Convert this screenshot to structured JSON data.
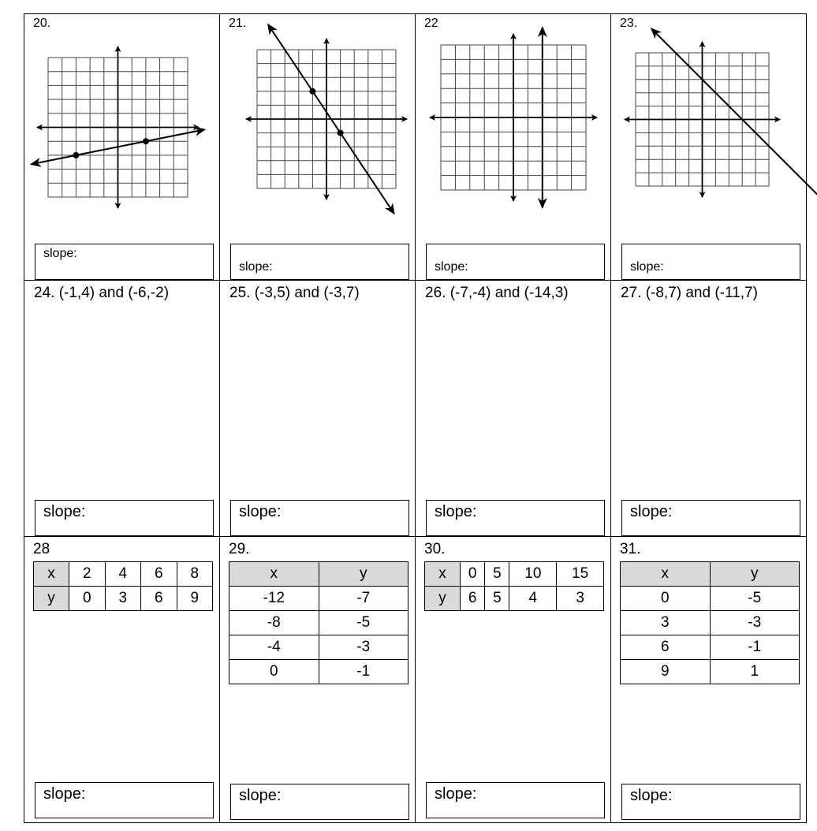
{
  "graphs": [
    {
      "label": "20.",
      "slope_label": "slope:",
      "grid": 10,
      "points": [
        [
          -3,
          -2
        ],
        [
          2,
          -1
        ]
      ],
      "line": {
        "type": "through",
        "p1": [
          -3,
          -2
        ],
        "p2": [
          2,
          -1
        ]
      }
    },
    {
      "label": "21.",
      "slope_label": "slope:",
      "grid": 10,
      "points": [
        [
          -1,
          2
        ],
        [
          1,
          -1
        ]
      ],
      "line": {
        "type": "through",
        "p1": [
          -1,
          2
        ],
        "p2": [
          1,
          -1
        ]
      }
    },
    {
      "label": "22",
      "slope_label": "slope:",
      "grid": 10,
      "points": [],
      "line": {
        "type": "vertical",
        "x": 2
      }
    },
    {
      "label": "23.",
      "slope_label": "slope:",
      "grid": 10,
      "points": [],
      "line": {
        "type": "through",
        "p1": [
          0,
          3
        ],
        "p2": [
          3,
          0
        ]
      }
    }
  ],
  "pairs": [
    {
      "label": "24.  (-1,4) and (-6,-2)",
      "slope_label": "slope:"
    },
    {
      "label": "25.  (-3,5) and (-3,7)",
      "slope_label": "slope:"
    },
    {
      "label": "26. (-7,-4) and (-14,3)",
      "slope_label": "slope:"
    },
    {
      "label": "27. (-8,7) and (-11,7)",
      "slope_label": "slope:"
    }
  ],
  "tables": [
    {
      "label": "28",
      "slope_label": "slope:",
      "orientation": "horizontal",
      "x": [
        "2",
        "4",
        "6",
        "8"
      ],
      "y": [
        "0",
        "3",
        "6",
        "9"
      ]
    },
    {
      "label": "29.",
      "slope_label": "slope:",
      "orientation": "vertical",
      "x": [
        "-12",
        "-8",
        "-4",
        "0"
      ],
      "y": [
        "-7",
        "-5",
        "-3",
        "-1"
      ]
    },
    {
      "label": "30.",
      "slope_label": "slope:",
      "orientation": "horizontal",
      "x": [
        "0",
        "5",
        "10",
        "15"
      ],
      "y": [
        "6",
        "5",
        "4",
        "3"
      ]
    },
    {
      "label": "31.",
      "slope_label": "slope:",
      "orientation": "vertical",
      "x": [
        "0",
        "3",
        "6",
        "9"
      ],
      "y": [
        "-5",
        "-3",
        "-1",
        "1"
      ]
    }
  ],
  "headers": {
    "x": "x",
    "y": "y"
  }
}
